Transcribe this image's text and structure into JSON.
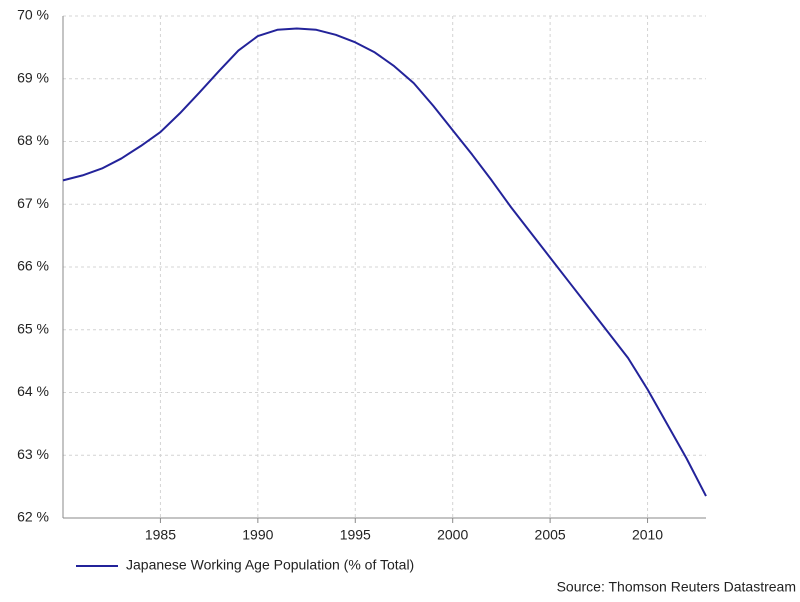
{
  "chart_data": {
    "type": "line",
    "x": [
      1980,
      1981,
      1982,
      1983,
      1984,
      1985,
      1986,
      1987,
      1988,
      1989,
      1990,
      1991,
      1992,
      1993,
      1994,
      1995,
      1996,
      1997,
      1998,
      1999,
      2000,
      2001,
      2002,
      2003,
      2004,
      2005,
      2006,
      2007,
      2008,
      2009,
      2010,
      2011,
      2012,
      2013
    ],
    "series": [
      {
        "name": "Japanese Working Age Population (% of Total)",
        "color": "#23239a",
        "values": [
          67.38,
          67.46,
          67.57,
          67.73,
          67.93,
          68.15,
          68.45,
          68.78,
          69.12,
          69.45,
          69.68,
          69.78,
          69.8,
          69.78,
          69.7,
          69.58,
          69.42,
          69.2,
          68.93,
          68.57,
          68.18,
          67.79,
          67.38,
          66.95,
          66.55,
          66.15,
          65.75,
          65.35,
          64.95,
          64.55,
          64.05,
          63.5,
          62.95,
          62.35
        ]
      }
    ],
    "xlim": [
      1980,
      2013
    ],
    "xticks": [
      1985,
      1990,
      1995,
      2000,
      2005,
      2010
    ],
    "ylim": [
      62,
      70
    ],
    "yticks": [
      {
        "value": 62,
        "label": "62 %"
      },
      {
        "value": 63,
        "label": "63 %"
      },
      {
        "value": 64,
        "label": "64 %"
      },
      {
        "value": 65,
        "label": "65 %"
      },
      {
        "value": 66,
        "label": "66 %"
      },
      {
        "value": 67,
        "label": "67 %"
      },
      {
        "value": 68,
        "label": "68 %"
      },
      {
        "value": 69,
        "label": "69 %"
      },
      {
        "value": 70,
        "label": "70 %"
      }
    ],
    "grid": true,
    "source": "Source: Thomson Reuters Datastream"
  }
}
